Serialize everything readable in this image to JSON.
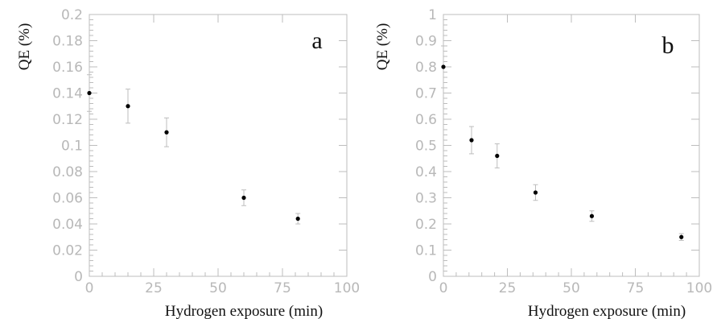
{
  "chart_data": [
    {
      "type": "scatter",
      "panel_label": "a",
      "xlabel": "Hydrogen exposure (min)",
      "ylabel": "QE (%)",
      "xlim": [
        0,
        100
      ],
      "ylim": [
        0,
        0.2
      ],
      "x_ticks": [
        "0",
        "25",
        "50",
        "75",
        "100"
      ],
      "y_ticks": [
        "0",
        "0.02",
        "0.04",
        "0.06",
        "0.08",
        "0.1",
        "0.12",
        "0.14",
        "0.16",
        "0.18",
        "0.2"
      ],
      "grid": false,
      "points": [
        {
          "x": 0,
          "y": 0.14,
          "err": 0.014
        },
        {
          "x": 15,
          "y": 0.13,
          "err": 0.013
        },
        {
          "x": 30,
          "y": 0.11,
          "err": 0.011
        },
        {
          "x": 60,
          "y": 0.06,
          "err": 0.006
        },
        {
          "x": 81,
          "y": 0.044,
          "err": 0.004
        }
      ]
    },
    {
      "type": "scatter",
      "panel_label": "b",
      "xlabel": "Hydrogen exposure (min)",
      "ylabel": "QE (%)",
      "xlim": [
        0,
        100
      ],
      "ylim": [
        0,
        1
      ],
      "x_ticks": [
        "0",
        "25",
        "50",
        "75",
        "100"
      ],
      "y_ticks": [
        "0",
        "0.1",
        "0.2",
        "0.3",
        "0.4",
        "0.5",
        "0.6",
        "0.7",
        "0.8",
        "0.9",
        "1"
      ],
      "grid": false,
      "points": [
        {
          "x": 0,
          "y": 0.8,
          "err": 0.08
        },
        {
          "x": 11,
          "y": 0.52,
          "err": 0.052
        },
        {
          "x": 21,
          "y": 0.46,
          "err": 0.046
        },
        {
          "x": 36,
          "y": 0.32,
          "err": 0.03
        },
        {
          "x": 58,
          "y": 0.23,
          "err": 0.02
        },
        {
          "x": 93,
          "y": 0.15,
          "err": 0.013
        }
      ]
    }
  ]
}
